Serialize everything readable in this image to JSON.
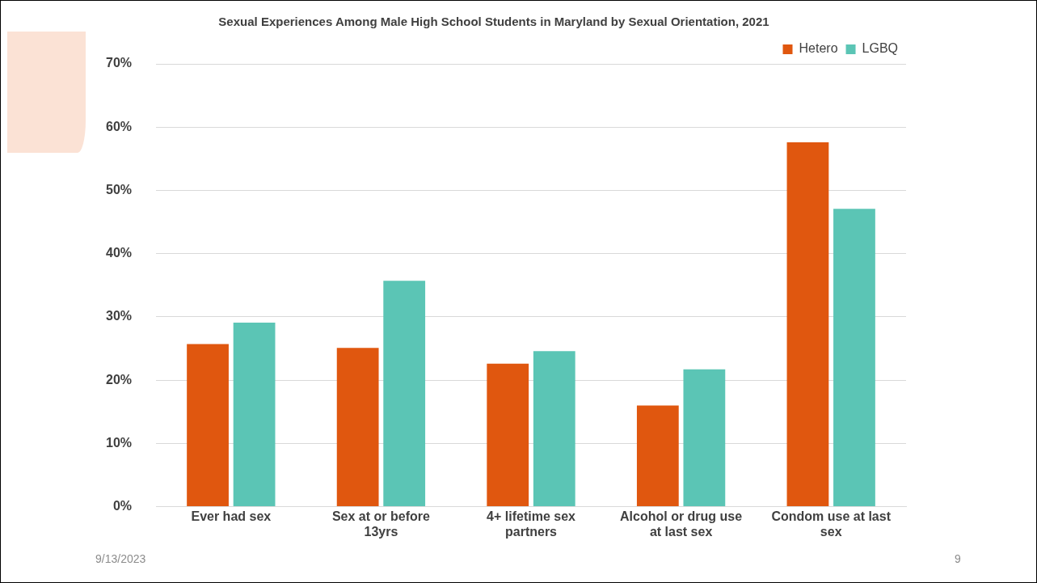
{
  "chart_data": {
    "type": "bar",
    "title": "Sexual Experiences Among Male High School Students in Maryland by Sexual Orientation, 2021",
    "categories": [
      "Ever had sex",
      "Sex at or before 13yrs",
      "4+ lifetime sex partners",
      "Alcohol or drug use at last sex",
      "Condom use at last sex"
    ],
    "series": [
      {
        "name": "Hetero",
        "color": "#e0570f",
        "values": [
          25.7,
          25.1,
          22.6,
          16.0,
          57.6
        ]
      },
      {
        "name": "LGBQ",
        "color": "#5bc5b5",
        "values": [
          29.1,
          35.7,
          24.6,
          21.7,
          47.1
        ]
      }
    ],
    "ylim": [
      0,
      70
    ],
    "yticks": [
      {
        "value": 0,
        "label": "0%"
      },
      {
        "value": 10,
        "label": "10%"
      },
      {
        "value": 20,
        "label": "20%"
      },
      {
        "value": 30,
        "label": "30%"
      },
      {
        "value": 40,
        "label": "40%"
      },
      {
        "value": 50,
        "label": "50%"
      },
      {
        "value": 60,
        "label": "60%"
      },
      {
        "value": 70,
        "label": "70%"
      }
    ],
    "grid": "y",
    "legend": "top",
    "annotations": [
      "9/13/2023",
      "9"
    ]
  }
}
